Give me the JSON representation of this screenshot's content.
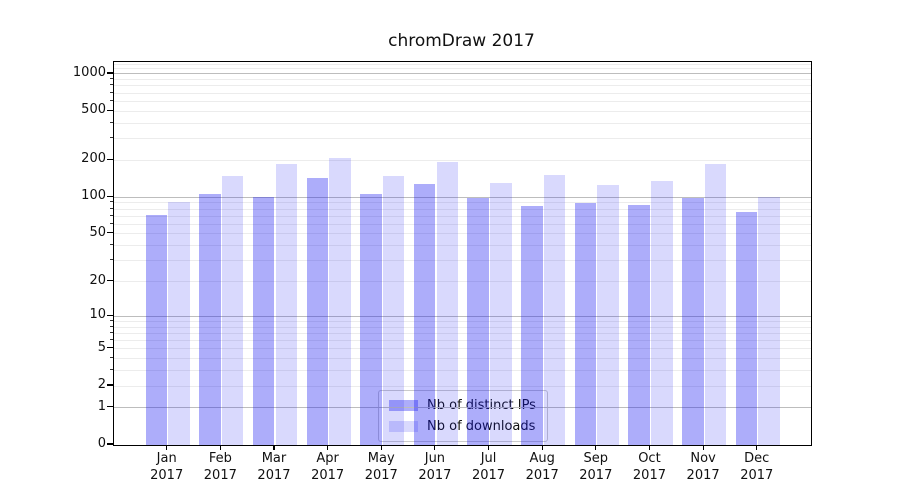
{
  "chart_data": {
    "type": "bar",
    "title": "chromDraw 2017",
    "yscale": "symlog (position proportional to log10(1+x))",
    "xlabel": "",
    "ylabel": "",
    "categories": [
      "Jan 2017",
      "Feb 2017",
      "Mar 2017",
      "Apr 2017",
      "May 2017",
      "Jun 2017",
      "Jul 2017",
      "Aug 2017",
      "Sep 2017",
      "Oct 2017",
      "Nov 2017",
      "Dec 2017"
    ],
    "x_tick_months": [
      "Jan",
      "Feb",
      "Mar",
      "Apr",
      "May",
      "Jun",
      "Jul",
      "Aug",
      "Sep",
      "Oct",
      "Nov",
      "Dec"
    ],
    "x_tick_year": "2017",
    "series": [
      {
        "name": "Nb of distinct IPs",
        "color": "rgba(20,20,240,0.35)",
        "values": [
          72,
          106,
          100,
          144,
          106,
          127,
          98,
          85,
          89,
          87,
          98,
          75
        ]
      },
      {
        "name": "Nb of downloads",
        "color": "rgba(20,20,240,0.16)",
        "values": [
          92,
          149,
          188,
          207,
          150,
          193,
          131,
          151,
          125,
          135,
          186,
          101
        ]
      }
    ],
    "y_ticks": [
      0,
      1,
      2,
      5,
      10,
      20,
      50,
      100,
      200,
      500,
      1000
    ],
    "ylim": [
      0,
      1250
    ],
    "grid": {
      "major_lines_at": [
        1,
        10,
        100,
        1000
      ],
      "minor_lines": "2-9 multiples per decade",
      "grid_on": true
    },
    "legend_position": "lower center, inside axes"
  },
  "colors": {
    "background": "#ffffff",
    "axis": "#000000",
    "grid_major": "#bdbdbd",
    "grid_minor": "#ececec",
    "text": "#111111",
    "legend_border": "#cbcbcb",
    "bar_distinct_ips": "rgba(20,20,240,0.35)",
    "bar_downloads": "rgba(20,20,240,0.16)"
  }
}
